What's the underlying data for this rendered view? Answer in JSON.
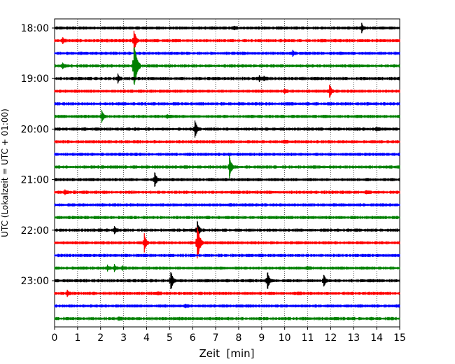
{
  "chart_data": {
    "type": "line",
    "subtype": "helicorder-seismogram",
    "title": "",
    "xlabel": "Zeit  [min]",
    "ylabel": "UTC (Lokalzeit = UTC + 01:00)",
    "xlim": [
      0,
      15
    ],
    "x_ticks": [
      0,
      1,
      2,
      3,
      4,
      5,
      6,
      7,
      8,
      9,
      10,
      11,
      12,
      13,
      14,
      15
    ],
    "x_grid": "dotted vertical lines at each minute",
    "y_tick_labels": [
      "18:00",
      "19:00",
      "20:00",
      "21:00",
      "22:00",
      "23:00"
    ],
    "trace_interval_minutes": 15,
    "trace_color_cycle": [
      "#000000",
      "#ff0000",
      "#0000ff",
      "#008000"
    ],
    "traces": [
      {
        "start": "18:00",
        "color": "#000000",
        "events": [
          {
            "t": 7.8,
            "amp": 0.25
          },
          {
            "t": 13.35,
            "amp": 0.45
          }
        ]
      },
      {
        "start": "18:15",
        "color": "#ff0000",
        "events": [
          {
            "t": 0.35,
            "amp": 0.35
          },
          {
            "t": 3.45,
            "amp": 1.0
          }
        ]
      },
      {
        "start": "18:30",
        "color": "#0000ff",
        "events": [
          {
            "t": 10.35,
            "amp": 0.4
          }
        ]
      },
      {
        "start": "18:45",
        "color": "#008000",
        "events": [
          {
            "t": 0.35,
            "amp": 0.35
          },
          {
            "t": 3.45,
            "amp": 2.0
          }
        ]
      },
      {
        "start": "19:00",
        "color": "#000000",
        "events": [
          {
            "t": 2.75,
            "amp": 0.5
          },
          {
            "t": 8.9,
            "amp": 0.3
          },
          {
            "t": 9.1,
            "amp": 0.3
          }
        ]
      },
      {
        "start": "19:15",
        "color": "#ff0000",
        "events": [
          {
            "t": 10.0,
            "amp": 0.25
          },
          {
            "t": 11.95,
            "amp": 0.7
          }
        ]
      },
      {
        "start": "19:30",
        "color": "#0000ff",
        "events": []
      },
      {
        "start": "19:45",
        "color": "#008000",
        "events": [
          {
            "t": 2.05,
            "amp": 0.7
          },
          {
            "t": 4.9,
            "amp": 0.25
          }
        ]
      },
      {
        "start": "20:00",
        "color": "#000000",
        "events": [
          {
            "t": 6.1,
            "amp": 0.9
          },
          {
            "t": 14.0,
            "amp": 0.2
          }
        ]
      },
      {
        "start": "20:15",
        "color": "#ff0000",
        "events": [
          {
            "t": 10.0,
            "amp": 0.2
          }
        ]
      },
      {
        "start": "20:30",
        "color": "#0000ff",
        "events": []
      },
      {
        "start": "20:45",
        "color": "#008000",
        "events": [
          {
            "t": 7.6,
            "amp": 1.0
          }
        ]
      },
      {
        "start": "21:00",
        "color": "#000000",
        "events": [
          {
            "t": 4.35,
            "amp": 0.8
          }
        ]
      },
      {
        "start": "21:15",
        "color": "#ff0000",
        "events": [
          {
            "t": 0.45,
            "amp": 0.3
          },
          {
            "t": 13.55,
            "amp": 0.2
          }
        ]
      },
      {
        "start": "21:30",
        "color": "#0000ff",
        "events": []
      },
      {
        "start": "21:45",
        "color": "#008000",
        "events": []
      },
      {
        "start": "22:00",
        "color": "#000000",
        "events": [
          {
            "t": 2.6,
            "amp": 0.45
          },
          {
            "t": 6.2,
            "amp": 0.9
          }
        ]
      },
      {
        "start": "22:15",
        "color": "#ff0000",
        "events": [
          {
            "t": 3.9,
            "amp": 0.9
          },
          {
            "t": 6.2,
            "amp": 1.6
          }
        ]
      },
      {
        "start": "22:30",
        "color": "#0000ff",
        "events": []
      },
      {
        "start": "22:45",
        "color": "#008000",
        "events": [
          {
            "t": 2.3,
            "amp": 0.3
          },
          {
            "t": 2.6,
            "amp": 0.35
          },
          {
            "t": 2.95,
            "amp": 0.3
          },
          {
            "t": 11.0,
            "amp": 0.2
          }
        ]
      },
      {
        "start": "23:00",
        "color": "#000000",
        "events": [
          {
            "t": 5.05,
            "amp": 1.0
          },
          {
            "t": 9.25,
            "amp": 0.9
          },
          {
            "t": 11.7,
            "amp": 0.7
          }
        ]
      },
      {
        "start": "23:15",
        "color": "#ff0000",
        "events": [
          {
            "t": 0.55,
            "amp": 0.35
          },
          {
            "t": 4.5,
            "amp": 0.2
          },
          {
            "t": 10.6,
            "amp": 0.2
          }
        ]
      },
      {
        "start": "23:30",
        "color": "#0000ff",
        "events": [
          {
            "t": 5.7,
            "amp": 0.2
          }
        ]
      },
      {
        "start": "23:45",
        "color": "#008000",
        "events": [
          {
            "t": 2.8,
            "amp": 0.25
          }
        ]
      }
    ]
  }
}
